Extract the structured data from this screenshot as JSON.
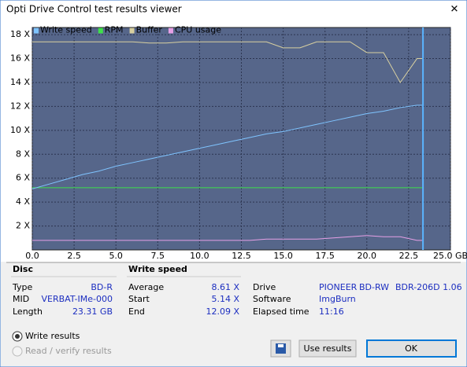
{
  "window": {
    "title": "Opti Drive Control test results viewer",
    "close": "✕"
  },
  "chart_data": {
    "type": "line",
    "x": [
      0,
      1,
      2,
      3,
      4,
      5,
      6,
      7,
      8,
      9,
      10,
      11,
      12,
      13,
      14,
      15,
      16,
      17,
      18,
      19,
      20,
      21,
      22,
      23,
      23.31
    ],
    "series": [
      {
        "name": "Write speed",
        "color": "#7fc4ff",
        "values": [
          5.1,
          5.5,
          5.9,
          6.3,
          6.6,
          7.0,
          7.3,
          7.6,
          7.9,
          8.2,
          8.5,
          8.8,
          9.1,
          9.4,
          9.7,
          9.9,
          10.2,
          10.5,
          10.8,
          11.1,
          11.4,
          11.6,
          11.9,
          12.1,
          12.1
        ]
      },
      {
        "name": "RPM",
        "color": "#3ee04a",
        "values": [
          5.2,
          5.2,
          5.2,
          5.2,
          5.2,
          5.2,
          5.2,
          5.2,
          5.2,
          5.2,
          5.2,
          5.2,
          5.2,
          5.2,
          5.2,
          5.2,
          5.2,
          5.2,
          5.2,
          5.2,
          5.2,
          5.2,
          5.2,
          5.2,
          5.2
        ]
      },
      {
        "name": "Buffer",
        "color": "#d8d0a0",
        "values": [
          17.4,
          17.4,
          17.4,
          17.4,
          17.4,
          17.4,
          17.4,
          17.3,
          17.3,
          17.4,
          17.4,
          17.4,
          17.4,
          17.4,
          17.4,
          16.9,
          16.9,
          17.4,
          17.4,
          17.4,
          16.5,
          16.5,
          14.0,
          16.0,
          16.0
        ]
      },
      {
        "name": "CPU usage",
        "color": "#e6a0e6",
        "values": [
          0.8,
          0.8,
          0.8,
          0.8,
          0.8,
          0.8,
          0.8,
          0.8,
          0.8,
          0.8,
          0.8,
          0.8,
          0.8,
          0.8,
          0.9,
          0.9,
          0.9,
          0.9,
          1.0,
          1.1,
          1.2,
          1.1,
          1.1,
          0.8,
          0.8
        ]
      }
    ],
    "xlim": [
      0,
      25
    ],
    "ylim": [
      0,
      18.6
    ],
    "xticks": [
      {
        "value": 0,
        "label": "0.0"
      },
      {
        "value": 2.5,
        "label": "2.5"
      },
      {
        "value": 5,
        "label": "5.0"
      },
      {
        "value": 7.5,
        "label": "7.5"
      },
      {
        "value": 10,
        "label": "10.0"
      },
      {
        "value": 12.5,
        "label": "12.5"
      },
      {
        "value": 15,
        "label": "15.0"
      },
      {
        "value": 17.5,
        "label": "17.5"
      },
      {
        "value": 20,
        "label": "20.0"
      },
      {
        "value": 22.5,
        "label": "22.5"
      },
      {
        "value": 25,
        "label": "25.0 GB"
      }
    ],
    "yticks": [
      {
        "value": 2,
        "label": "2 X"
      },
      {
        "value": 4,
        "label": "4 X"
      },
      {
        "value": 6,
        "label": "6 X"
      },
      {
        "value": 8,
        "label": "8 X"
      },
      {
        "value": 10,
        "label": "10 X"
      },
      {
        "value": 12,
        "label": "12 X"
      },
      {
        "value": 14,
        "label": "14 X"
      },
      {
        "value": 16,
        "label": "16 X"
      },
      {
        "value": 18,
        "label": "18 X"
      }
    ],
    "grid": true
  },
  "disc": {
    "header": "Disc",
    "rows": [
      [
        "Type",
        "BD-R"
      ],
      [
        "MID",
        "VERBAT-IMe-000"
      ],
      [
        "Length",
        "23.31 GB"
      ]
    ]
  },
  "write_speed": {
    "header": "Write speed",
    "rows": [
      [
        "Average",
        "8.61 X"
      ],
      [
        "Start",
        "5.14 X"
      ],
      [
        "End",
        "12.09 X"
      ]
    ]
  },
  "drive_info": {
    "rows": [
      [
        "Drive",
        "PIONEER",
        "BD-RW",
        "BDR-206D 1.06"
      ],
      [
        "Software",
        "ImgBurn"
      ],
      [
        "Elapsed time",
        "11:16"
      ]
    ]
  },
  "options": [
    "Write results",
    "Read / verify results"
  ],
  "buttons": {
    "use": "Use results",
    "ok": "OK"
  }
}
